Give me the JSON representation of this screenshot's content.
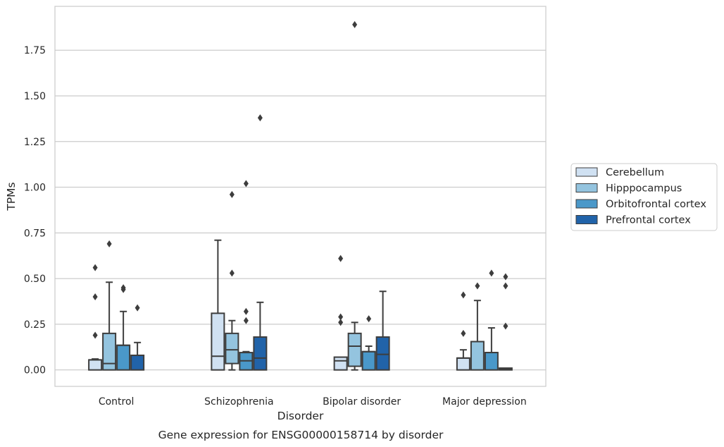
{
  "chart_data": {
    "type": "box",
    "title": "",
    "caption": "Gene expression for ENSG00000158714 by disorder",
    "xlabel": "Disorder",
    "ylabel": "TPMs",
    "ylim": [
      -0.09,
      1.99
    ],
    "yticks": [
      0.0,
      0.25,
      0.5,
      0.75,
      1.0,
      1.25,
      1.5,
      1.75
    ],
    "ytick_labels": [
      "0.00",
      "0.25",
      "0.50",
      "0.75",
      "1.00",
      "1.25",
      "1.50",
      "1.75"
    ],
    "grid": "horizontal",
    "legend_position": "right",
    "categories": [
      "Control",
      "Schizophrenia",
      "Bipolar disorder",
      "Major depression"
    ],
    "series": [
      {
        "name": "Cerebellum",
        "color": "#d0e1f2",
        "boxes": [
          {
            "whislo": 0.0,
            "q1": 0.0,
            "med": 0.055,
            "q3": 0.055,
            "whishi": 0.06,
            "fliers": [
              0.56,
              0.4,
              0.19
            ]
          },
          {
            "whislo": 0.0,
            "q1": 0.0,
            "med": 0.075,
            "q3": 0.31,
            "whishi": 0.71,
            "fliers": []
          },
          {
            "whislo": 0.0,
            "q1": 0.0,
            "med": 0.05,
            "q3": 0.07,
            "whishi": 0.07,
            "fliers": [
              0.61,
              0.29,
              0.26
            ]
          },
          {
            "whislo": 0.0,
            "q1": 0.0,
            "med": 0.065,
            "q3": 0.065,
            "whishi": 0.11,
            "fliers": [
              0.41,
              0.2
            ]
          }
        ]
      },
      {
        "name": "Hipppocampus",
        "color": "#94c4df",
        "boxes": [
          {
            "whislo": 0.0,
            "q1": 0.0,
            "med": 0.035,
            "q3": 0.2,
            "whishi": 0.48,
            "fliers": [
              0.69
            ]
          },
          {
            "whislo": 0.0,
            "q1": 0.035,
            "med": 0.11,
            "q3": 0.2,
            "whishi": 0.27,
            "fliers": [
              0.96,
              0.53
            ]
          },
          {
            "whislo": 0.0,
            "q1": 0.02,
            "med": 0.13,
            "q3": 0.2,
            "whishi": 0.26,
            "fliers": [
              1.89
            ]
          },
          {
            "whislo": 0.0,
            "q1": 0.0,
            "med": 0.155,
            "q3": 0.155,
            "whishi": 0.38,
            "fliers": [
              0.46
            ]
          }
        ]
      },
      {
        "name": "Orbitofrontal cortex",
        "color": "#4a98c9",
        "boxes": [
          {
            "whislo": 0.0,
            "q1": 0.0,
            "med": 0.135,
            "q3": 0.135,
            "whishi": 0.32,
            "fliers": [
              0.45,
              0.44
            ]
          },
          {
            "whislo": 0.0,
            "q1": 0.0,
            "med": 0.05,
            "q3": 0.095,
            "whishi": 0.1,
            "fliers": [
              1.02,
              0.32,
              0.27
            ]
          },
          {
            "whislo": 0.0,
            "q1": 0.0,
            "med": 0.1,
            "q3": 0.1,
            "whishi": 0.13,
            "fliers": [
              0.28
            ]
          },
          {
            "whislo": 0.0,
            "q1": 0.0,
            "med": 0.095,
            "q3": 0.095,
            "whishi": 0.23,
            "fliers": [
              0.53
            ]
          }
        ]
      },
      {
        "name": "Prefrontal cortex",
        "color": "#2163a9",
        "boxes": [
          {
            "whislo": 0.0,
            "q1": 0.0,
            "med": 0.08,
            "q3": 0.08,
            "whishi": 0.15,
            "fliers": [
              0.34
            ]
          },
          {
            "whislo": 0.0,
            "q1": 0.0,
            "med": 0.065,
            "q3": 0.18,
            "whishi": 0.37,
            "fliers": [
              1.38
            ]
          },
          {
            "whislo": 0.0,
            "q1": 0.0,
            "med": 0.085,
            "q3": 0.18,
            "whishi": 0.43,
            "fliers": []
          },
          {
            "whislo": 0.0,
            "q1": 0.0,
            "med": 0.005,
            "q3": 0.01,
            "whishi": 0.01,
            "fliers": [
              0.51,
              0.46,
              0.24
            ]
          }
        ]
      }
    ]
  }
}
